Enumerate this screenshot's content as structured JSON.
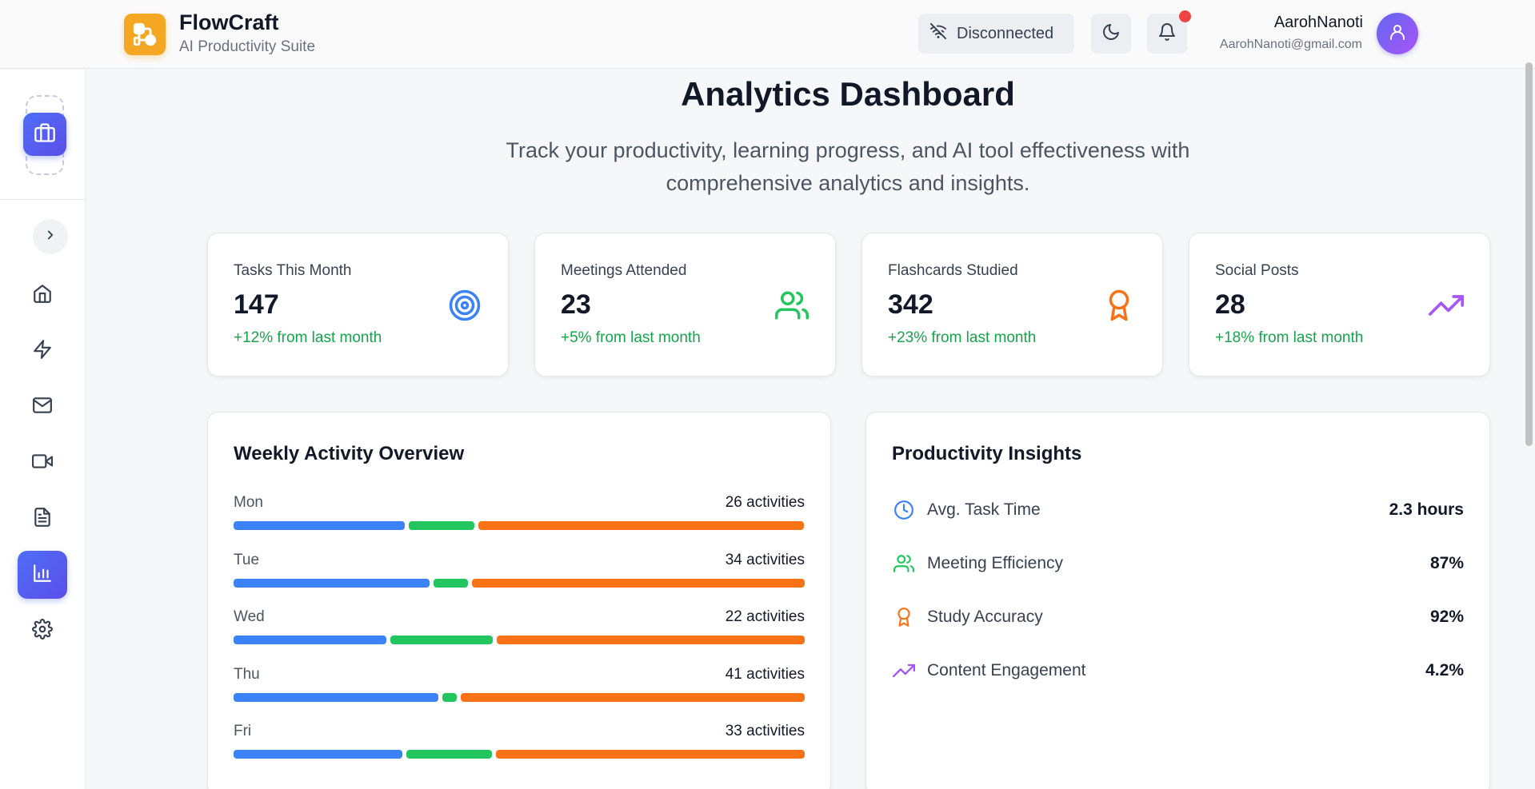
{
  "header": {
    "brand_name": "FlowCraft",
    "brand_subtitle": "AI Productivity Suite",
    "connection_status": "Disconnected",
    "user_name": "AarohNanoti",
    "user_email": "AarohNanoti@gmail.com",
    "icons": [
      "workflow-logo-icon",
      "wifi-off-icon",
      "moon-icon",
      "bell-icon",
      "user-icon"
    ]
  },
  "sidebar": {
    "workspace_icon": "briefcase-icon",
    "collapse_icon": "chevron-right-icon",
    "items": [
      {
        "name": "home",
        "icon": "home-icon",
        "active": false
      },
      {
        "name": "automation",
        "icon": "bolt-icon",
        "active": false
      },
      {
        "name": "email",
        "icon": "mail-icon",
        "active": false
      },
      {
        "name": "meetings",
        "icon": "video-icon",
        "active": false
      },
      {
        "name": "documents",
        "icon": "file-text-icon",
        "active": false
      },
      {
        "name": "analytics",
        "icon": "bar-chart-icon",
        "active": true
      },
      {
        "name": "settings",
        "icon": "gear-icon",
        "active": false
      }
    ]
  },
  "page": {
    "title": "Analytics Dashboard",
    "description": "Track your productivity, learning progress, and AI tool effectiveness with comprehensive analytics and insights."
  },
  "stats": [
    {
      "label": "Tasks This Month",
      "value": "147",
      "change": "+12% from last month",
      "icon": "target-icon",
      "color": "#3b82f6"
    },
    {
      "label": "Meetings Attended",
      "value": "23",
      "change": "+5% from last month",
      "icon": "users-icon",
      "color": "#22c55e"
    },
    {
      "label": "Flashcards Studied",
      "value": "342",
      "change": "+23% from last month",
      "icon": "award-icon",
      "color": "#f97316"
    },
    {
      "label": "Social Posts",
      "value": "28",
      "change": "+18% from last month",
      "icon": "trending-up-icon",
      "color": "#a855f7"
    }
  ],
  "weekly_activity": {
    "title": "Weekly Activity Overview",
    "colors": {
      "blue": "#3b82f6",
      "green": "#22c55e",
      "orange": "#f97316"
    },
    "days": [
      {
        "day": "Mon",
        "count_label": "26 activities",
        "segments": [
          0.3,
          0.115,
          0.57
        ]
      },
      {
        "day": "Tue",
        "count_label": "34 activities",
        "segments": [
          0.345,
          0.06,
          0.585
        ]
      },
      {
        "day": "Wed",
        "count_label": "22 activities",
        "segments": [
          0.268,
          0.18,
          0.54
        ]
      },
      {
        "day": "Thu",
        "count_label": "41 activities",
        "segments": [
          0.36,
          0.025,
          0.605
        ]
      },
      {
        "day": "Fri",
        "count_label": "33 activities",
        "segments": [
          0.296,
          0.15,
          0.54
        ]
      }
    ]
  },
  "insights": {
    "title": "Productivity Insights",
    "items": [
      {
        "label": "Avg. Task Time",
        "value": "2.3 hours",
        "icon": "clock-icon",
        "color": "#3b82f6"
      },
      {
        "label": "Meeting Efficiency",
        "value": "87%",
        "icon": "users-icon",
        "color": "#22c55e"
      },
      {
        "label": "Study Accuracy",
        "value": "92%",
        "icon": "award-icon",
        "color": "#f97316"
      },
      {
        "label": "Content Engagement",
        "value": "4.2%",
        "icon": "trending-up-icon",
        "color": "#a855f7"
      }
    ]
  }
}
